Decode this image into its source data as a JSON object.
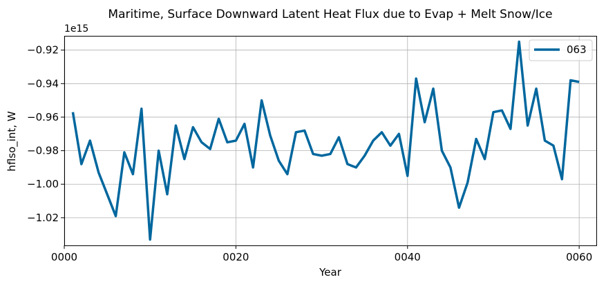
{
  "chart_data": {
    "type": "line",
    "title": "Maritime, Surface Downward Latent Heat Flux due to Evap + Melt Snow/Ice",
    "xlabel": "Year",
    "ylabel": "hflso_int, W",
    "y_offset_label": "1e15",
    "y_scale_factor": 1000000000000000.0,
    "xlim": [
      0,
      62
    ],
    "ylim": [
      -1.0365,
      -0.9115
    ],
    "x_ticks": [
      0,
      20,
      40,
      60
    ],
    "x_tick_labels": [
      "0000",
      "0020",
      "0040",
      "0060"
    ],
    "y_ticks": [
      -1.02,
      -1.0,
      -0.98,
      -0.96,
      -0.94,
      -0.92
    ],
    "y_tick_labels": [
      "−1.02",
      "−1.00",
      "−0.98",
      "−0.96",
      "−0.94",
      "−0.92"
    ],
    "grid": true,
    "legend_position": "top-right",
    "series": [
      {
        "name": "063",
        "color": "#00679e",
        "x": [
          1,
          2,
          3,
          4,
          5,
          6,
          7,
          8,
          9,
          10,
          11,
          12,
          13,
          14,
          15,
          16,
          17,
          18,
          19,
          20,
          21,
          22,
          23,
          24,
          25,
          26,
          27,
          28,
          29,
          30,
          31,
          32,
          33,
          34,
          35,
          36,
          37,
          38,
          39,
          40,
          41,
          42,
          43,
          44,
          45,
          46,
          47,
          48,
          49,
          50,
          51,
          52,
          53,
          54,
          55,
          56,
          57,
          58,
          59,
          60
        ],
        "values": [
          -0.957,
          -0.988,
          -0.974,
          -0.993,
          -1.006,
          -1.019,
          -0.981,
          -0.994,
          -0.955,
          -1.033,
          -0.98,
          -1.006,
          -0.965,
          -0.985,
          -0.966,
          -0.975,
          -0.979,
          -0.961,
          -0.975,
          -0.974,
          -0.964,
          -0.99,
          -0.95,
          -0.971,
          -0.986,
          -0.994,
          -0.969,
          -0.968,
          -0.982,
          -0.983,
          -0.982,
          -0.972,
          -0.988,
          -0.99,
          -0.983,
          -0.974,
          -0.969,
          -0.977,
          -0.97,
          -0.995,
          -0.937,
          -0.963,
          -0.943,
          -0.98,
          -0.99,
          -1.014,
          -0.999,
          -0.973,
          -0.985,
          -0.957,
          -0.956,
          -0.967,
          -0.915,
          -0.965,
          -0.943,
          -0.974,
          -0.977,
          -0.997,
          -0.938,
          -0.939
        ]
      }
    ]
  }
}
